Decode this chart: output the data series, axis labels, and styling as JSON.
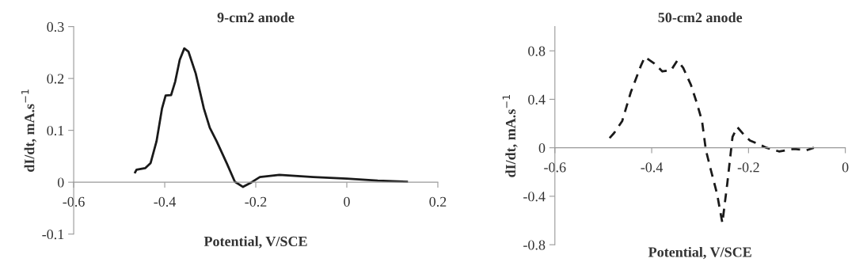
{
  "chart_data": [
    {
      "type": "line",
      "title": "9-cm2 anode",
      "xlabel": "Potential, V/SCE",
      "ylabel": "dI/dt, mA.s$^{−1}$",
      "xlim": [
        -0.6,
        0.2
      ],
      "xticks": [
        -0.6,
        -0.4,
        -0.2,
        0,
        0.2
      ],
      "ylim": [
        -0.1,
        0.3
      ],
      "yticks": [
        -0.1,
        0,
        0.1,
        0.2,
        0.3
      ],
      "grid": false,
      "series": [
        {
          "color": "#1a1a1a",
          "line_style": "solid",
          "x": [
            -0.465,
            -0.462,
            -0.443,
            -0.431,
            -0.418,
            -0.406,
            -0.398,
            -0.386,
            -0.377,
            -0.367,
            -0.357,
            -0.348,
            -0.332,
            -0.314,
            -0.301,
            -0.286,
            -0.264,
            -0.246,
            -0.228,
            -0.209,
            -0.191,
            -0.148,
            -0.074,
            0,
            0.068,
            0.132
          ],
          "values": [
            0.019,
            0.024,
            0.027,
            0.037,
            0.079,
            0.142,
            0.167,
            0.168,
            0.194,
            0.236,
            0.258,
            0.252,
            0.21,
            0.142,
            0.105,
            0.079,
            0.037,
            0.001,
            -0.009,
            0.0,
            0.01,
            0.014,
            0.01,
            0.007,
            0.003,
            0.001
          ]
        }
      ]
    },
    {
      "type": "line",
      "title": "50-cm2 anode",
      "xlabel": "Potential, V/SCE",
      "ylabel": "dI/dt, mA.s$^{−1}$",
      "xlim": [
        -0.6,
        0
      ],
      "xticks": [
        -0.6,
        -0.4,
        -0.2,
        0
      ],
      "ylim": [
        -0.8,
        1.0
      ],
      "yticks": [
        -0.8,
        -0.4,
        0,
        0.4,
        0.8
      ],
      "grid": false,
      "series": [
        {
          "color": "#1a1a1a",
          "line_style": "dashed",
          "x": [
            -0.487,
            -0.478,
            -0.461,
            -0.443,
            -0.422,
            -0.414,
            -0.396,
            -0.378,
            -0.36,
            -0.347,
            -0.335,
            -0.319,
            -0.306,
            -0.296,
            -0.288,
            -0.278,
            -0.265,
            -0.254,
            -0.244,
            -0.233,
            -0.223,
            -0.21,
            -0.197,
            -0.179,
            -0.163,
            -0.137,
            -0.106,
            -0.08,
            -0.065
          ],
          "values": [
            0.08,
            0.12,
            0.22,
            0.46,
            0.68,
            0.75,
            0.7,
            0.63,
            0.64,
            0.72,
            0.66,
            0.52,
            0.36,
            0.22,
            -0.02,
            -0.18,
            -0.38,
            -0.62,
            -0.3,
            0.09,
            0.17,
            0.11,
            0.06,
            0.03,
            0.0,
            -0.03,
            -0.01,
            -0.02,
            0.0
          ]
        }
      ]
    }
  ]
}
